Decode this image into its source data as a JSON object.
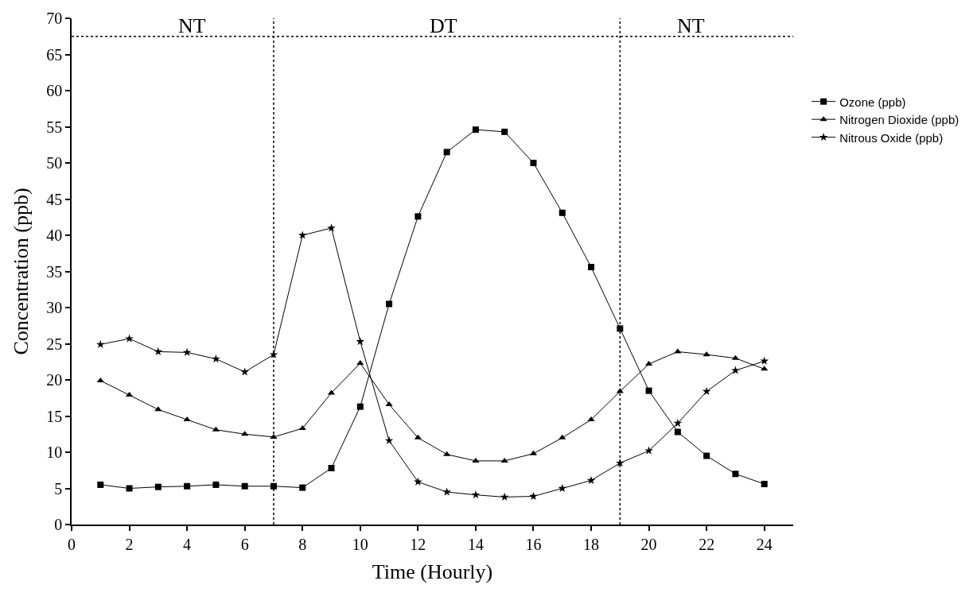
{
  "chart_data": {
    "type": "line",
    "xlabel": "Time (Hourly)",
    "ylabel": "Concentration (ppb)",
    "x": [
      1,
      2,
      3,
      4,
      5,
      6,
      7,
      8,
      9,
      10,
      11,
      12,
      13,
      14,
      15,
      16,
      17,
      18,
      19,
      20,
      21,
      22,
      23,
      24
    ],
    "series": [
      {
        "name": "Ozone (ppb)",
        "color": "#000000",
        "marker": "square",
        "values": [
          5.5,
          5.0,
          5.2,
          5.3,
          5.5,
          5.3,
          5.3,
          5.1,
          7.8,
          16.3,
          30.5,
          42.6,
          51.5,
          54.6,
          54.3,
          50.0,
          43.1,
          35.6,
          27.1,
          18.5,
          12.8,
          9.5,
          7.0,
          5.6
        ]
      },
      {
        "name": "Nitrogen Dioxide (ppb)",
        "color": "#000000",
        "marker": "triangle",
        "values": [
          19.9,
          17.9,
          15.9,
          14.5,
          13.1,
          12.5,
          12.1,
          13.3,
          18.2,
          22.3,
          16.6,
          12.0,
          9.7,
          8.8,
          8.8,
          9.8,
          12.0,
          14.5,
          18.4,
          22.2,
          23.9,
          23.5,
          23.0,
          21.5
        ]
      },
      {
        "name": "Nitrous Oxide (ppb)",
        "color": "#000000",
        "marker": "star",
        "values": [
          24.9,
          25.7,
          23.9,
          23.8,
          22.9,
          21.1,
          23.5,
          40.0,
          41.0,
          25.3,
          11.6,
          5.9,
          4.5,
          4.1,
          3.8,
          3.9,
          5.0,
          6.1,
          8.5,
          10.2,
          14.0,
          18.4,
          21.3,
          22.6
        ]
      }
    ],
    "xlim": [
      0,
      25
    ],
    "xticks": [
      0,
      2,
      4,
      6,
      8,
      10,
      12,
      14,
      16,
      18,
      20,
      22,
      24
    ],
    "ylim": [
      0,
      70
    ],
    "yticks": [
      0,
      5,
      10,
      15,
      20,
      25,
      30,
      35,
      40,
      45,
      50,
      55,
      60,
      65,
      70
    ],
    "ref_lines": [
      {
        "axis": "x",
        "value": 7,
        "line_style": "dotted",
        "color": "#000000"
      },
      {
        "axis": "x",
        "value": 19,
        "line_style": "dotted",
        "color": "#000000"
      },
      {
        "axis": "y",
        "value": 67.5,
        "line_style": "dotted",
        "color": "#000000"
      }
    ],
    "annotations": [
      "NT",
      "DT",
      "NT"
    ],
    "legend": "right",
    "line_style": "solid"
  }
}
